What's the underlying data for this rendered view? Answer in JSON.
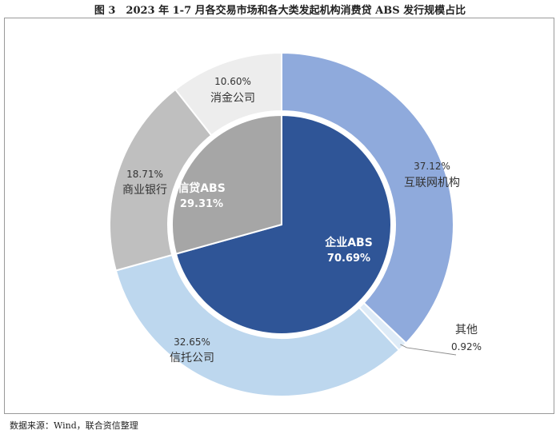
{
  "figure": {
    "title": "图 3　2023 年 1-7 月各交易市场和各大类发起机构消费贷 ABS 发行规模占比",
    "source": "数据来源：Wind，联合资信整理"
  },
  "chart_data": {
    "type": "pie",
    "variant": "nested-donut",
    "unit": "%",
    "inner": [
      {
        "name": "企业ABS",
        "label": "70.69%",
        "value": 70.69,
        "color": "#2f5597"
      },
      {
        "name": "信贷ABS",
        "label": "29.31%",
        "value": 29.31,
        "color": "#a6a6a6"
      }
    ],
    "outer": [
      {
        "name": "互联网机构",
        "label": "37.12%",
        "value": 37.12,
        "color": "#8faadc"
      },
      {
        "name": "其他",
        "label": "0.92%",
        "value": 0.92,
        "color": "#deebf7"
      },
      {
        "name": "信托公司",
        "label": "32.65%",
        "value": 32.65,
        "color": "#bdd7ee"
      },
      {
        "name": "商业银行",
        "label": "18.71%",
        "value": 18.71,
        "color": "#bfbfbf"
      },
      {
        "name": "消金公司",
        "label": "10.60%",
        "value": 10.6,
        "color": "#ededed"
      }
    ]
  }
}
